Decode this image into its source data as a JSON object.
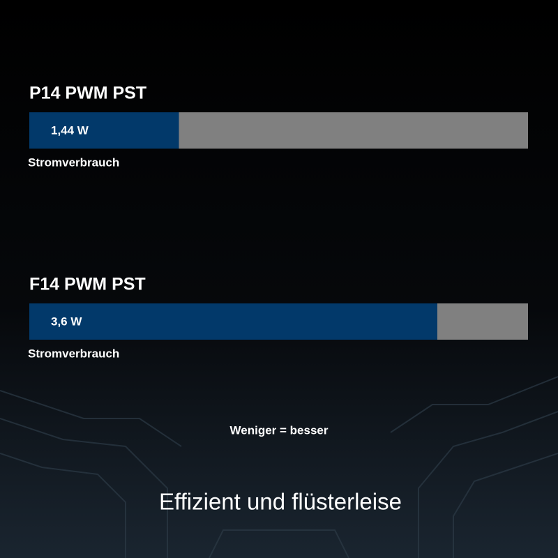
{
  "chart_data": [
    {
      "type": "bar",
      "orientation": "horizontal",
      "title": "P14 PWM PST",
      "categories": [
        null
      ],
      "values": [
        1.44
      ],
      "value_labels": [
        "1,44 W"
      ],
      "xlabel": "Stromverbrauch",
      "xlim": [
        0,
        4.8
      ],
      "color": "#02396a",
      "track_color": "#808080"
    },
    {
      "type": "bar",
      "orientation": "horizontal",
      "title": "F14 PWM PST",
      "categories": [
        null
      ],
      "values": [
        3.6
      ],
      "value_labels": [
        "3,6 W"
      ],
      "xlabel": "Stromverbrauch",
      "xlim": [
        0,
        4.4
      ],
      "color": "#02396a",
      "track_color": "#808080"
    }
  ],
  "note": "Weniger = besser",
  "headline": "Effizient und flüsterleise"
}
